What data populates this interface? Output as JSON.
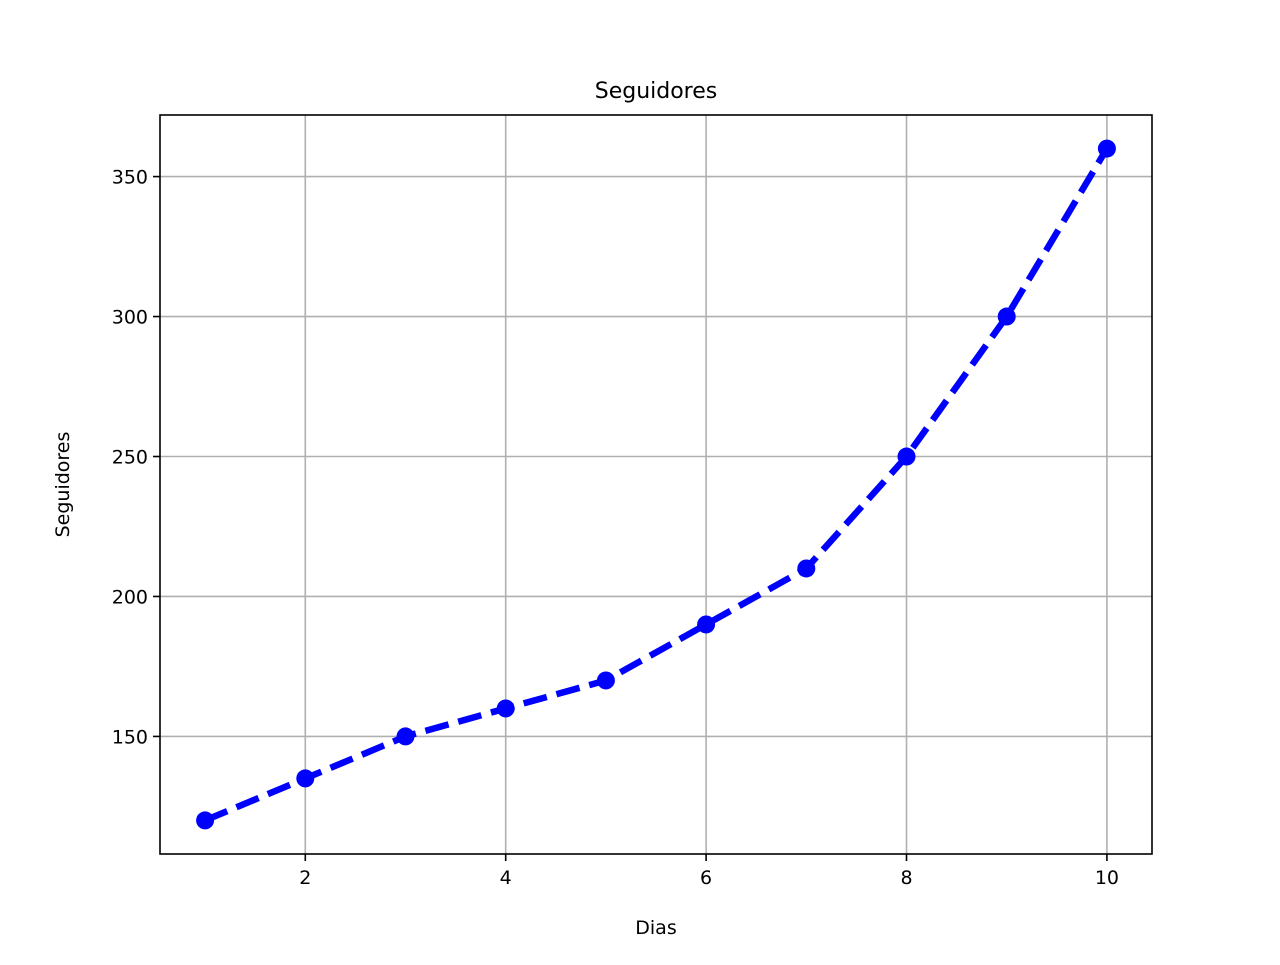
{
  "chart_data": {
    "type": "line",
    "title": "Seguidores",
    "xlabel": "Dias",
    "ylabel": "Seguidores",
    "xlim": [
      0.55,
      10.45
    ],
    "ylim": [
      108,
      372
    ],
    "xticks": [
      2,
      4,
      6,
      8,
      10
    ],
    "yticks": [
      150,
      200,
      250,
      300,
      350
    ],
    "grid": true,
    "series": [
      {
        "x": [
          1,
          2,
          3,
          4,
          5,
          6,
          7,
          8,
          9,
          10
        ],
        "values": [
          120,
          135,
          150,
          160,
          170,
          190,
          210,
          250,
          300,
          360
        ],
        "color": "#0000ff",
        "line_style": "dashed",
        "marker": "circle"
      }
    ]
  },
  "colors": {
    "series": "#0000ff",
    "grid": "#b0b0b0",
    "axes": "#000000"
  }
}
